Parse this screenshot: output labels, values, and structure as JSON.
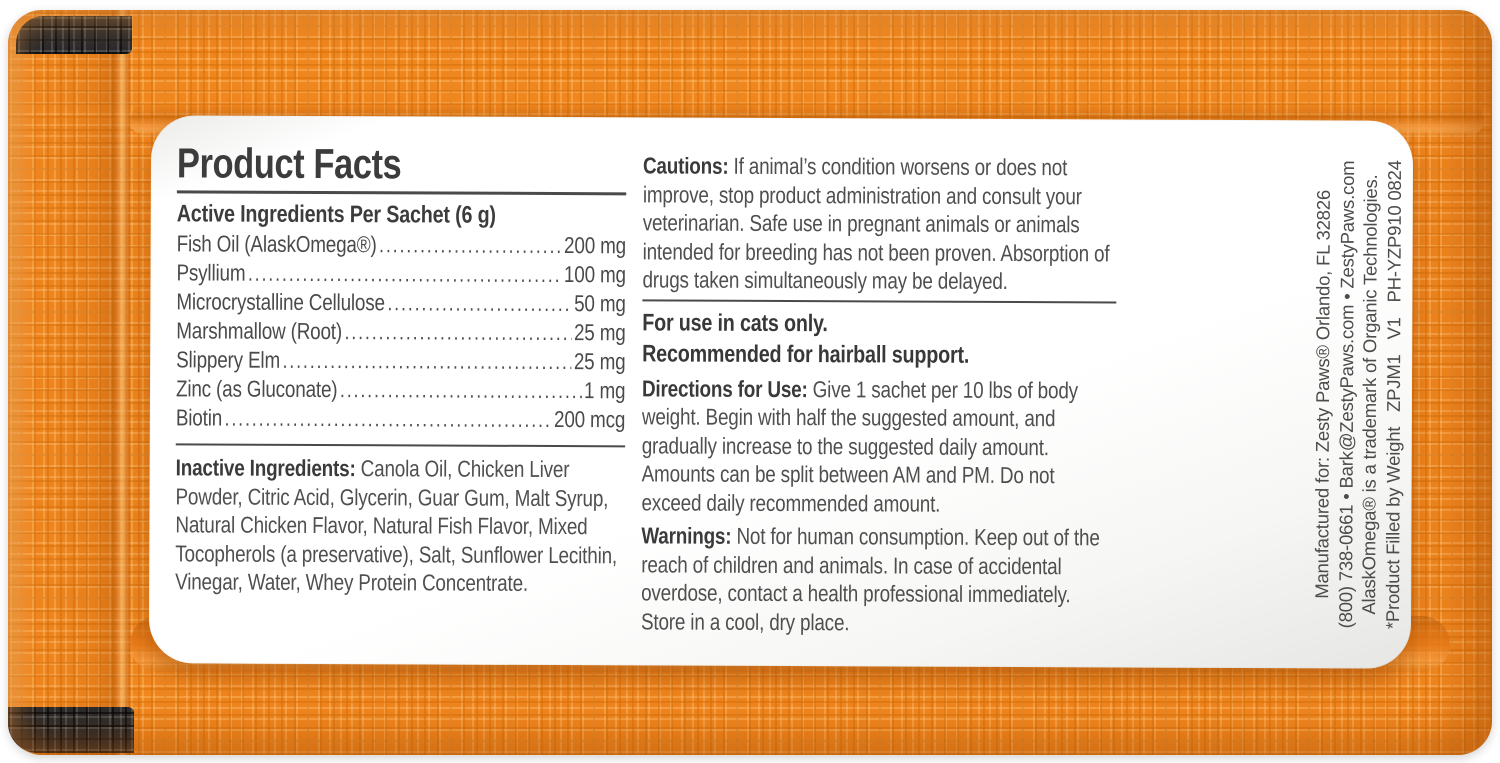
{
  "colors": {
    "pouch_orange": "#F0861E",
    "pouch_orange_dark": "#D26E0A",
    "tear_strip_black": "#2B2B2B",
    "label_white": "#FFFFFF",
    "text_dark": "#3C3C3C",
    "text_body": "#4F4F4F"
  },
  "label": {
    "title": "Product Facts",
    "active_heading": "Active Ingredients Per Sachet (6 g)",
    "active_ingredients": [
      {
        "name": "Fish Oil (AlaskOmega®)",
        "amount": "200 mg"
      },
      {
        "name": "Psyllium",
        "amount": "100 mg"
      },
      {
        "name": "Microcrystalline Cellulose",
        "amount": "50 mg"
      },
      {
        "name": "Marshmallow (Root)",
        "amount": "25 mg"
      },
      {
        "name": "Slippery Elm",
        "amount": "25 mg"
      },
      {
        "name": "Zinc (as Gluconate)",
        "amount": "1 mg"
      },
      {
        "name": "Biotin",
        "amount": "200 mcg"
      }
    ],
    "inactive_label": "Inactive Ingredients:",
    "inactive_text": "Canola Oil, Chicken Liver Powder, Citric Acid, Glycerin, Guar Gum, Malt Syrup, Natural Chicken Flavor, Natural Fish Flavor, Mixed Tocopherols (a preservative), Salt, Sunflower Lecithin, Vinegar, Water, Whey Protein Concentrate.",
    "cautions_label": "Cautions:",
    "cautions_text": "If animal’s condition worsens or does not improve, stop product administration and consult your veterinarian. Safe use in pregnant animals or animals intended for breeding has not been proven. Absorption of drugs taken simultaneously may be delayed.",
    "use_line": "For use in cats only.",
    "recommend_line": "Recommended for hairball support.",
    "directions_label": "Directions for Use:",
    "directions_text": "Give 1 sachet per 10 lbs of body weight. Begin with half the suggested amount, and gradually increase to the suggested daily amount. Amounts can be split between AM and PM. Do not exceed daily recommended amount.",
    "warnings_label": "Warnings:",
    "warnings_text": "Not for human consumption. Keep out of the reach of children and animals. In case of accidental overdose, contact a health professional immediately. Store in a cool, dry place.",
    "side_lines": [
      "Manufactured for: Zesty Paws® Orlando, FL 32826",
      "(800) 738-0661 • Bark@ZestyPaws.com • ZestyPaws.com",
      "AlaskOmega® is a trademark of Organic Technologies.",
      "*Product Filled by Weight   ZPJM1   V1   PH-YZP910 0824"
    ]
  }
}
